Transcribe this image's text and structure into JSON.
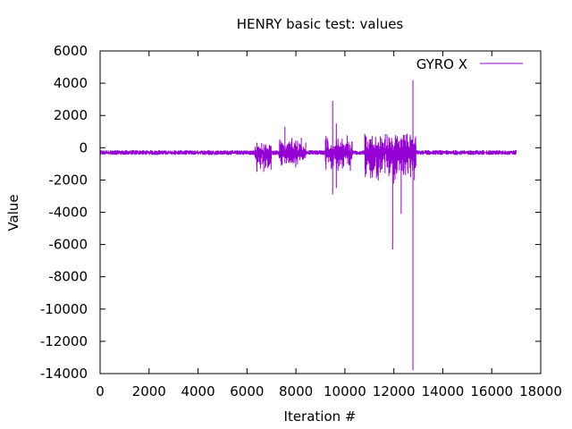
{
  "chart_data": {
    "type": "line",
    "title": "HENRY basic test: values",
    "xlabel": "Iteration #",
    "ylabel": "Value",
    "xlim": [
      0,
      18000
    ],
    "ylim": [
      -14000,
      6000
    ],
    "xticks": [
      0,
      2000,
      4000,
      6000,
      8000,
      10000,
      12000,
      14000,
      16000,
      18000
    ],
    "yticks": [
      6000,
      4000,
      2000,
      0,
      -2000,
      -4000,
      -6000,
      -8000,
      -10000,
      -12000,
      -14000
    ],
    "grid": false,
    "legend": {
      "position": "top-right"
    },
    "series": [
      {
        "name": "GYRO X",
        "color": "#9400d3",
        "baseline": -300,
        "iterations": 17000,
        "noise_envelope": [
          {
            "x": [
              0,
              6300
            ],
            "low": -450,
            "high": -150
          },
          {
            "x": [
              6300,
              7000
            ],
            "low": -1600,
            "high": 400
          },
          {
            "x": [
              7000,
              7300
            ],
            "low": -450,
            "high": -150
          },
          {
            "x": [
              7300,
              8400
            ],
            "low": -1300,
            "high": 700
          },
          {
            "x": [
              8400,
              9200
            ],
            "low": -450,
            "high": -150
          },
          {
            "x": [
              9200,
              10300
            ],
            "low": -1600,
            "high": 800
          },
          {
            "x": [
              10300,
              10800
            ],
            "low": -450,
            "high": -150
          },
          {
            "x": [
              10800,
              12900
            ],
            "low": -2300,
            "high": 1100
          },
          {
            "x": [
              12900,
              17000
            ],
            "low": -450,
            "high": -150
          }
        ],
        "spikes": [
          {
            "x": 7550,
            "min": -600,
            "max": 1300
          },
          {
            "x": 9500,
            "min": -2900,
            "max": 2900
          },
          {
            "x": 9650,
            "min": -2500,
            "max": 1500
          },
          {
            "x": 11950,
            "min": -6300,
            "max": 200
          },
          {
            "x": 12300,
            "min": -4100,
            "max": 600
          },
          {
            "x": 12780,
            "min": -13800,
            "max": 4200
          }
        ]
      }
    ]
  }
}
